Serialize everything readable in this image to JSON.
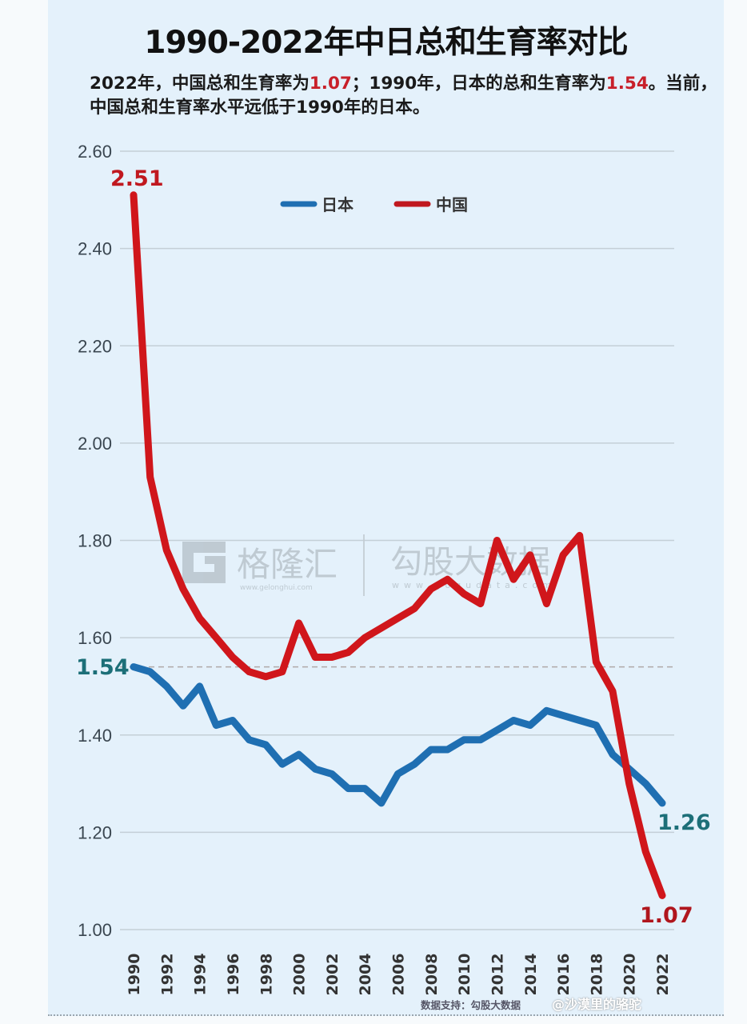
{
  "header": {
    "title": "1990-2022年中日总和生育率对比",
    "subtitle_parts": [
      "2022年，中国总和生育率为",
      "1.07",
      "；1990年，日本的总和生育率为",
      "1.54",
      "。当前，中国总和生育率水平远低于1990年的日本。"
    ]
  },
  "legend": [
    {
      "label": "日本",
      "color": "#1f6fb2"
    },
    {
      "label": "中国",
      "color": "#d0161b"
    }
  ],
  "annotations": {
    "china_start": "2.51",
    "china_end": "1.07",
    "japan_start": "1.54",
    "japan_end": "1.26"
  },
  "watermark": {
    "logo_letter": "G",
    "brand1": "格隆汇",
    "brand1_url": "www.gelonghui.com",
    "brand2": "勾股大数据",
    "brand2_url": "www.gogudata.com"
  },
  "footer": {
    "source": "数据支持：勾股大数据",
    "weibo": "@沙漠里的骆驼"
  },
  "chart_data": {
    "type": "line",
    "title": "1990-2022年中日总和生育率对比",
    "xlabel": "",
    "ylabel": "",
    "ylim": [
      1.0,
      2.6
    ],
    "yticks": [
      "2.60",
      "2.40",
      "2.20",
      "2.00",
      "1.80",
      "1.60",
      "1.40",
      "1.20",
      "1.00"
    ],
    "xticks": [
      "1990",
      "1992",
      "1994",
      "1996",
      "1998",
      "2000",
      "2002",
      "2004",
      "2006",
      "2008",
      "2010",
      "2012",
      "2014",
      "2016",
      "2018",
      "2020",
      "2022"
    ],
    "grid": true,
    "legend_position": "top-center",
    "reference_line": {
      "value": 1.54,
      "style": "dashed"
    },
    "x": [
      1990,
      1991,
      1992,
      1993,
      1994,
      1995,
      1996,
      1997,
      1998,
      1999,
      2000,
      2001,
      2002,
      2003,
      2004,
      2005,
      2006,
      2007,
      2008,
      2009,
      2010,
      2011,
      2012,
      2013,
      2014,
      2015,
      2016,
      2017,
      2018,
      2019,
      2020,
      2021,
      2022
    ],
    "series": [
      {
        "name": "日本",
        "color": "#1f6fb2",
        "values": [
          1.54,
          1.53,
          1.5,
          1.46,
          1.5,
          1.42,
          1.43,
          1.39,
          1.38,
          1.34,
          1.36,
          1.33,
          1.32,
          1.29,
          1.29,
          1.26,
          1.32,
          1.34,
          1.37,
          1.37,
          1.39,
          1.39,
          1.41,
          1.43,
          1.42,
          1.45,
          1.44,
          1.43,
          1.42,
          1.36,
          1.33,
          1.3,
          1.26
        ]
      },
      {
        "name": "中国",
        "color": "#d0161b",
        "values": [
          2.51,
          1.93,
          1.78,
          1.7,
          1.64,
          1.6,
          1.56,
          1.53,
          1.52,
          1.53,
          1.63,
          1.56,
          1.56,
          1.57,
          1.6,
          1.62,
          1.64,
          1.66,
          1.7,
          1.72,
          1.69,
          1.67,
          1.8,
          1.72,
          1.77,
          1.67,
          1.77,
          1.81,
          1.55,
          1.49,
          1.3,
          1.16,
          1.07
        ]
      }
    ]
  }
}
